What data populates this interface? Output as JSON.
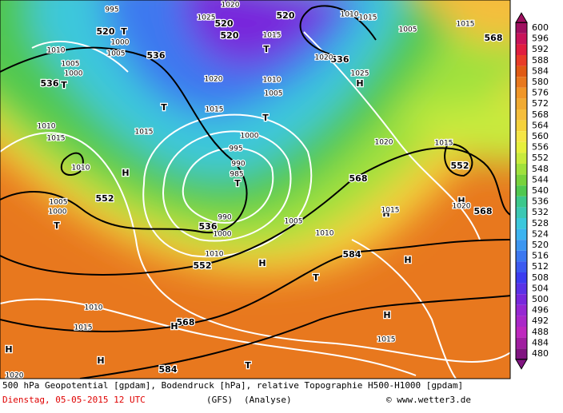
{
  "map": {
    "labels": [
      "995",
      "520",
      "T",
      "1000",
      "1005",
      "536",
      "1010",
      "1005",
      "1000",
      "536",
      "T",
      "1025",
      "520",
      "520",
      "1020",
      "520",
      "1010",
      "1015",
      "T",
      "1015",
      "536",
      "1020",
      "1025",
      "H",
      "1005",
      "1015",
      "568",
      "1020",
      "1010",
      "1005",
      "T",
      "1015",
      "T",
      "1015",
      "1000",
      "995",
      "990",
      "985",
      "T",
      "1010",
      "1015",
      "H",
      "1010",
      "552",
      "1005",
      "1000",
      "T",
      "990",
      "536",
      "1000",
      "1005",
      "1010",
      "568",
      "1020",
      "1015",
      "552",
      "H",
      "568",
      "1020",
      "H",
      "1015",
      "584",
      "H",
      "1010",
      "552",
      "H",
      "T",
      "1010",
      "1015",
      "568",
      "H",
      "H",
      "1015",
      "H",
      "H",
      "584",
      "T",
      "1020"
    ]
  },
  "legend": {
    "levels": [
      600,
      596,
      592,
      588,
      584,
      580,
      576,
      572,
      568,
      564,
      560,
      556,
      552,
      548,
      544,
      540,
      536,
      532,
      528,
      524,
      520,
      516,
      512,
      508,
      504,
      500,
      496,
      492,
      488,
      484,
      480
    ],
    "colors": [
      "#a01060",
      "#c8145a",
      "#e01e40",
      "#e83c28",
      "#e05a14",
      "#e8781e",
      "#f09628",
      "#f0aa32",
      "#f5be3c",
      "#f5d23c",
      "#f5e646",
      "#e6f03c",
      "#c8eb3c",
      "#a0e13c",
      "#78d23c",
      "#50c850",
      "#3cc88c",
      "#3cc8b4",
      "#3cc8dc",
      "#3cb4f0",
      "#3c96f0",
      "#3c78f0",
      "#3c5af0",
      "#3c3cf0",
      "#5a32e6",
      "#7828dc",
      "#9628d2",
      "#aa28c8",
      "#be28be",
      "#a01ea0",
      "#801480"
    ]
  },
  "caption": {
    "line1": "500 hPa Geopotential [gpdam], Bodendruck [hPa], relative Topographie H500-H1000 [gpdam]",
    "date": "Dienstag, 05-05-2015  12 UTC",
    "model": "(GFS)",
    "run": "(Analyse)",
    "credit": "© www.wetter3.de"
  }
}
